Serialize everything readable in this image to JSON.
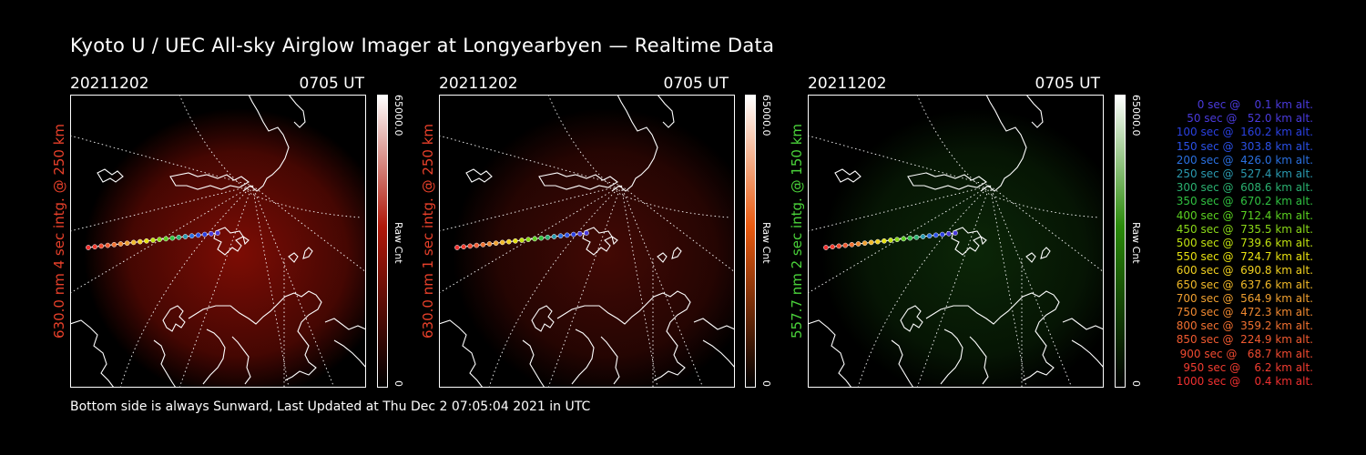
{
  "title": "Kyoto U / UEC All-sky Airglow Imager at Longyearbyen — Realtime Data",
  "footer": "Bottom side is always Sunward, Last Updated at Thu Dec  2 07:05:04 2021 in UTC",
  "panels": [
    {
      "date": "20211202",
      "time": "0705 UT",
      "label": "630.0 nm 4 sec intg. @ 250 km",
      "label_color": "#e8402a",
      "colorbar_max": "65000.0",
      "colorbar_min": "0",
      "colorbar_title": "Raw Cnt",
      "colorbar_color": "#b0180a",
      "glow_color": "#8a0e05"
    },
    {
      "date": "20211202",
      "time": "0705 UT",
      "label": "630.0 nm 1 sec intg. @ 250 km",
      "label_color": "#e8402a",
      "colorbar_max": "65000.0",
      "colorbar_min": "0",
      "colorbar_title": "Raw Cnt",
      "colorbar_color": "#e85a10",
      "glow_color": "#4a0a05"
    },
    {
      "date": "20211202",
      "time": "0705 UT",
      "label": "557.7 nm 2 sec intg. @ 150 km",
      "label_color": "#4ad23a",
      "colorbar_max": "65000.0",
      "colorbar_min": "0",
      "colorbar_title": "Raw Cnt",
      "colorbar_color": "#2a8a0a",
      "glow_color": "#0c2a08"
    }
  ],
  "legend": [
    {
      "text": "0 sec @    0.1 km alt.",
      "color": "#4a3adc"
    },
    {
      "text": "50 sec @   52.0 km alt.",
      "color": "#4a3adc"
    },
    {
      "text": "100 sec @  160.2 km alt.",
      "color": "#2a40e0"
    },
    {
      "text": "150 sec @  303.8 km alt.",
      "color": "#2a50e6"
    },
    {
      "text": "200 sec @  426.0 km alt.",
      "color": "#2a70e0"
    },
    {
      "text": "250 sec @  527.4 km alt.",
      "color": "#2a9ab0"
    },
    {
      "text": "300 sec @  608.6 km alt.",
      "color": "#2ab070"
    },
    {
      "text": "350 sec @  670.2 km alt.",
      "color": "#30c040"
    },
    {
      "text": "400 sec @  712.4 km alt.",
      "color": "#5ad020"
    },
    {
      "text": "450 sec @  735.5 km alt.",
      "color": "#8ad818"
    },
    {
      "text": "500 sec @  739.6 km alt.",
      "color": "#c0e010"
    },
    {
      "text": "550 sec @  724.7 km alt.",
      "color": "#e6e010"
    },
    {
      "text": "600 sec @  690.8 km alt.",
      "color": "#f0d020"
    },
    {
      "text": "650 sec @  637.6 km alt.",
      "color": "#f0b828"
    },
    {
      "text": "700 sec @  564.9 km alt.",
      "color": "#f0a030"
    },
    {
      "text": "750 sec @  472.3 km alt.",
      "color": "#f08830"
    },
    {
      "text": "800 sec @  359.2 km alt.",
      "color": "#f07030"
    },
    {
      "text": "850 sec @  224.9 km alt.",
      "color": "#f05a30"
    },
    {
      "text": "900 sec @   68.7 km alt.",
      "color": "#f04a30"
    },
    {
      "text": "950 sec @    6.2 km alt.",
      "color": "#f03c30"
    },
    {
      "text": "1000 sec @    0.4 km alt.",
      "color": "#f03030"
    }
  ]
}
